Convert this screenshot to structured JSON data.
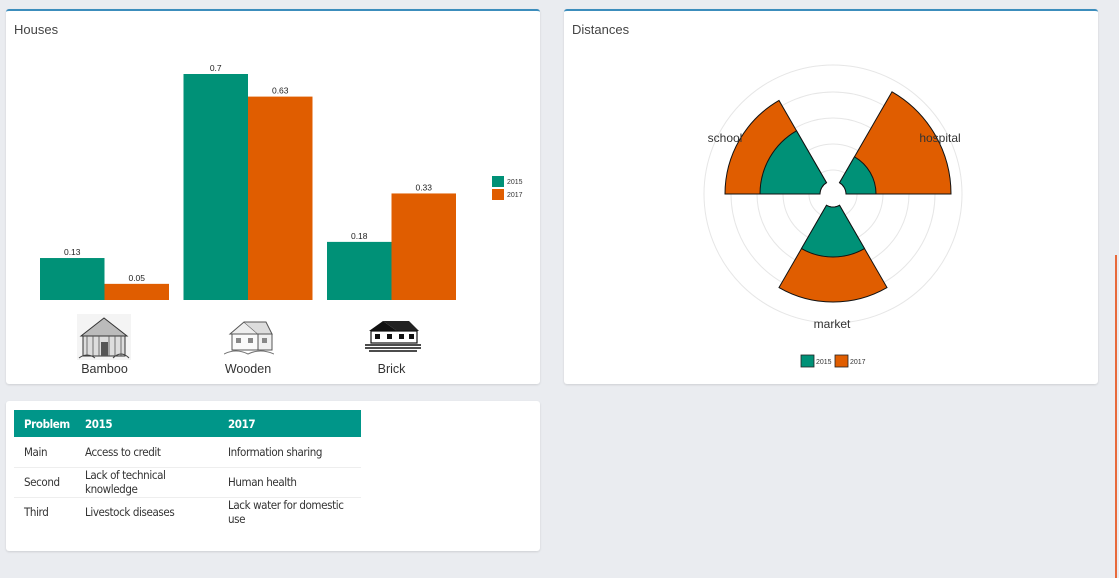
{
  "panels": {
    "houses": {
      "title": "Houses"
    },
    "distances": {
      "title": "Distances"
    }
  },
  "colors": {
    "series_2015": "#009177",
    "series_2017": "#e05d00",
    "table_header": "#009689",
    "accent": "#3c8dbc"
  },
  "chart_data": [
    {
      "type": "bar",
      "categories": [
        "Bamboo",
        "Wooden",
        "Brick"
      ],
      "series": [
        {
          "name": "2015",
          "values": [
            0.13,
            0.7,
            0.18
          ]
        },
        {
          "name": "2017",
          "values": [
            0.05,
            0.63,
            0.33
          ]
        }
      ],
      "data_labels": true,
      "legend": "right",
      "category_icons": [
        "bamboo-house-icon",
        "wooden-house-icon",
        "brick-house-icon"
      ]
    },
    {
      "type": "polar-bar",
      "categories": [
        "hospital",
        "market",
        "school"
      ],
      "series": [
        {
          "name": "2015",
          "values": [
            0.3,
            0.5,
            0.6
          ]
        },
        {
          "name": "2017",
          "values": [
            1.05,
            0.95,
            0.95
          ]
        }
      ],
      "grid": true,
      "legend": "bottom"
    }
  ],
  "problems_table": {
    "headers": [
      "Problem",
      "2015",
      "2017"
    ],
    "rows": [
      [
        "Main",
        "Access to credit",
        "Information sharing"
      ],
      [
        "Second",
        "Lack of technical knowledge",
        "Human health"
      ],
      [
        "Third",
        "Livestock diseases",
        "Lack water for domestic use"
      ]
    ]
  }
}
